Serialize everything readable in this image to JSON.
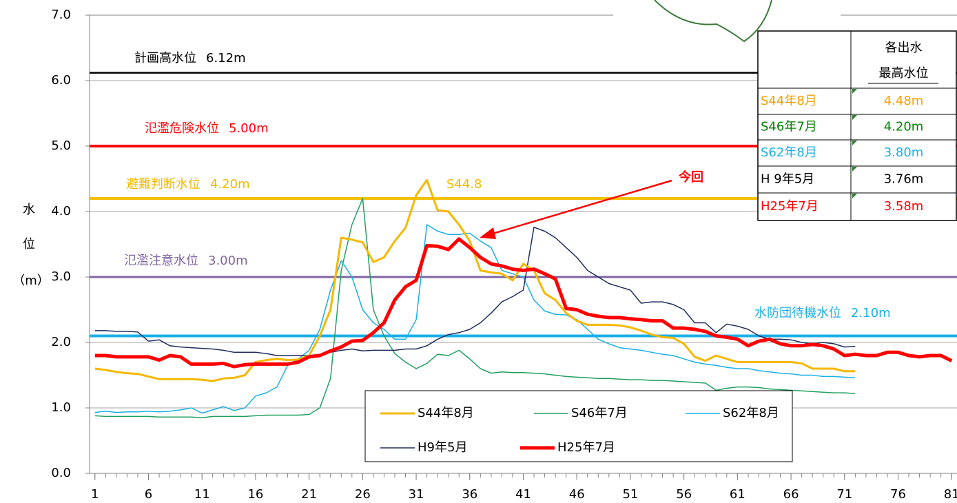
{
  "chart_data": {
    "type": "line",
    "ylabel": [
      "水",
      "位",
      "（m）"
    ],
    "x": [
      1,
      2,
      3,
      4,
      5,
      6,
      7,
      8,
      9,
      10,
      11,
      12,
      13,
      14,
      15,
      16,
      17,
      18,
      19,
      20,
      21,
      22,
      23,
      24,
      25,
      26,
      27,
      28,
      29,
      30,
      31,
      32,
      33,
      34,
      35,
      36,
      37,
      38,
      39,
      40,
      41,
      42,
      43,
      44,
      45,
      46,
      47,
      48,
      49,
      50,
      51,
      52,
      53,
      54,
      55,
      56,
      57,
      58,
      59,
      60,
      61,
      62,
      63,
      64,
      65,
      66,
      67,
      68,
      69,
      70,
      71,
      72,
      73,
      74,
      75,
      76,
      77,
      78,
      79,
      80,
      81
    ],
    "xlim": [
      0.5,
      81.5
    ],
    "xticks": [
      1,
      6,
      11,
      16,
      21,
      26,
      31,
      36,
      41,
      46,
      51,
      56,
      61,
      66,
      71,
      76,
      81
    ],
    "ylim": [
      0,
      7
    ],
    "yticks": [
      {
        "value": 0,
        "label": "0.0"
      },
      {
        "value": 1,
        "label": "1.0"
      },
      {
        "value": 2,
        "label": "2.0"
      },
      {
        "value": 3,
        "label": "3.0"
      },
      {
        "value": 4,
        "label": "4.0"
      },
      {
        "value": 5,
        "label": "5.0"
      },
      {
        "value": 6,
        "label": "6.0"
      },
      {
        "value": 7,
        "label": "7.0"
      }
    ],
    "grid": true,
    "series": [
      {
        "name": "S44年8月",
        "color": "#f5b800",
        "width": 3,
        "values": [
          1.6,
          1.58,
          1.55,
          1.53,
          1.52,
          1.48,
          1.44,
          1.44,
          1.44,
          1.44,
          1.43,
          1.41,
          1.45,
          1.46,
          1.5,
          1.7,
          1.73,
          1.75,
          1.73,
          1.74,
          1.8,
          2.1,
          2.5,
          3.6,
          3.57,
          3.53,
          3.23,
          3.3,
          3.55,
          3.75,
          4.25,
          4.48,
          4.02,
          4.0,
          3.8,
          3.55,
          3.1,
          3.07,
          3.05,
          2.95,
          3.2,
          3.1,
          2.75,
          2.65,
          2.45,
          2.33,
          2.27,
          2.27,
          2.27,
          2.26,
          2.23,
          2.18,
          2.12,
          2.08,
          2.07,
          1.98,
          1.78,
          1.72,
          1.8,
          1.75,
          1.7,
          1.7,
          1.7,
          1.7,
          1.7,
          1.7,
          1.68,
          1.6,
          1.6,
          1.6,
          1.56,
          1.56,
          null,
          null,
          null,
          null,
          null,
          null,
          null,
          null,
          null
        ]
      },
      {
        "name": "S46年7月",
        "color": "#20a060",
        "width": 1.5,
        "values": [
          0.88,
          0.87,
          0.87,
          0.87,
          0.87,
          0.87,
          0.86,
          0.86,
          0.86,
          0.86,
          0.85,
          0.87,
          0.87,
          0.87,
          0.87,
          0.88,
          0.89,
          0.89,
          0.89,
          0.89,
          0.9,
          1.0,
          1.45,
          3.1,
          3.8,
          4.2,
          2.5,
          2.1,
          1.83,
          1.7,
          1.6,
          1.68,
          1.82,
          1.8,
          1.88,
          1.75,
          1.6,
          1.53,
          1.55,
          1.54,
          1.54,
          1.53,
          1.52,
          1.5,
          1.48,
          1.47,
          1.46,
          1.45,
          1.45,
          1.44,
          1.43,
          1.43,
          1.42,
          1.42,
          1.41,
          1.4,
          1.39,
          1.38,
          1.27,
          1.3,
          1.32,
          1.32,
          1.31,
          1.29,
          1.28,
          1.27,
          1.26,
          1.25,
          1.24,
          1.23,
          1.23,
          1.22,
          null,
          null,
          null,
          null,
          null,
          null,
          null,
          null,
          null
        ]
      },
      {
        "name": "S62年8月",
        "color": "#1ab0e8",
        "width": 1.5,
        "values": [
          0.93,
          0.95,
          0.93,
          0.94,
          0.94,
          0.95,
          0.94,
          0.95,
          0.97,
          1.0,
          0.92,
          0.97,
          1.02,
          0.96,
          1.0,
          1.18,
          1.23,
          1.32,
          1.65,
          1.75,
          1.88,
          2.2,
          2.8,
          3.25,
          3.0,
          2.5,
          2.3,
          2.2,
          2.05,
          2.05,
          2.35,
          3.8,
          3.7,
          3.65,
          3.65,
          3.67,
          3.55,
          3.45,
          3.1,
          3.05,
          3.0,
          2.65,
          2.48,
          2.43,
          2.42,
          2.35,
          2.2,
          2.05,
          1.98,
          1.92,
          1.9,
          1.88,
          1.85,
          1.82,
          1.8,
          1.75,
          1.7,
          1.67,
          1.65,
          1.62,
          1.6,
          1.6,
          1.57,
          1.55,
          1.53,
          1.52,
          1.5,
          1.5,
          1.48,
          1.48,
          1.47,
          1.46,
          null,
          null,
          null,
          null,
          null,
          null,
          null,
          null,
          null
        ]
      },
      {
        "name": "H9年5月",
        "color": "#1f2d5c",
        "width": 1.5,
        "values": [
          2.18,
          2.18,
          2.17,
          2.17,
          2.16,
          2.02,
          2.04,
          1.95,
          1.93,
          1.92,
          1.91,
          1.9,
          1.88,
          1.85,
          1.85,
          1.85,
          1.83,
          1.8,
          1.8,
          1.8,
          1.8,
          1.82,
          1.85,
          1.88,
          1.9,
          1.87,
          1.88,
          1.88,
          1.88,
          1.9,
          1.9,
          1.95,
          2.05,
          2.12,
          2.15,
          2.2,
          2.3,
          2.45,
          2.62,
          2.7,
          2.8,
          3.76,
          3.7,
          3.6,
          3.45,
          3.3,
          3.1,
          3.0,
          2.9,
          2.85,
          2.8,
          2.6,
          2.62,
          2.62,
          2.58,
          2.5,
          2.3,
          2.3,
          2.15,
          2.28,
          2.25,
          2.2,
          2.1,
          2.05,
          2.05,
          2.04,
          2.0,
          1.98,
          2.0,
          1.98,
          1.93,
          1.94,
          null,
          null,
          null,
          null,
          null,
          null,
          null,
          null,
          null
        ]
      },
      {
        "name": "H25年7月",
        "color": "#ff0000",
        "width": 5,
        "values": [
          1.8,
          1.8,
          1.78,
          1.78,
          1.78,
          1.78,
          1.73,
          1.8,
          1.78,
          1.67,
          1.67,
          1.67,
          1.68,
          1.63,
          1.66,
          1.67,
          1.67,
          1.67,
          1.67,
          1.7,
          1.78,
          1.8,
          1.87,
          1.93,
          2.02,
          2.03,
          2.15,
          2.3,
          2.65,
          2.85,
          2.95,
          3.48,
          3.47,
          3.42,
          3.58,
          3.45,
          3.3,
          3.2,
          3.17,
          3.12,
          3.1,
          3.12,
          3.05,
          2.97,
          2.52,
          2.5,
          2.43,
          2.4,
          2.38,
          2.38,
          2.36,
          2.35,
          2.33,
          2.33,
          2.22,
          2.22,
          2.2,
          2.17,
          2.1,
          2.08,
          2.05,
          1.95,
          2.02,
          2.05,
          1.98,
          1.95,
          1.95,
          1.97,
          1.95,
          1.9,
          1.8,
          1.82,
          1.8,
          1.8,
          1.85,
          1.85,
          1.8,
          1.78,
          1.8,
          1.8,
          1.72
        ]
      }
    ],
    "reference_lines": [
      {
        "name": "計画高水位",
        "value": 6.12,
        "value_label": "6.12m",
        "color": "#000000",
        "text_color": "#000000",
        "width": 2.5
      },
      {
        "name": "氾濫危険水位",
        "value": 5.0,
        "value_label": "5.00m",
        "color": "#ff0000",
        "text_color": "#ff0000",
        "width": 4
      },
      {
        "name": "避難判断水位",
        "value": 4.2,
        "value_label": "4.20m",
        "color": "#f5c000",
        "text_color": "#f5b800",
        "width": 4
      },
      {
        "name": "氾濫注意水位",
        "value": 3.0,
        "value_label": "3.00m",
        "color": "#8064a2",
        "text_color": "#8064a2",
        "width": 3
      },
      {
        "name": "水防団待機水位",
        "value": 2.1,
        "value_label": "2.10m",
        "color": "#1ab0e8",
        "text_color": "#1ab0e8",
        "width": 4
      }
    ],
    "annotations": [
      {
        "text": "S44.8",
        "color": "#f5b800"
      },
      {
        "text": "今回",
        "color": "#ff0000"
      }
    ],
    "table": {
      "header": [
        "各出水",
        "最高水位"
      ],
      "rows": [
        [
          "S44年8月",
          "4.48m"
        ],
        [
          "S46年7月",
          "4.20m"
        ],
        [
          "S62年8月",
          "3.80m"
        ],
        [
          "H 9年5月",
          "3.76m"
        ],
        [
          "H25年7月",
          "3.58m"
        ]
      ],
      "colors": [
        "#f5a000",
        "#008000",
        "#1ab0e8",
        "#000000",
        "#ff0000"
      ]
    }
  }
}
